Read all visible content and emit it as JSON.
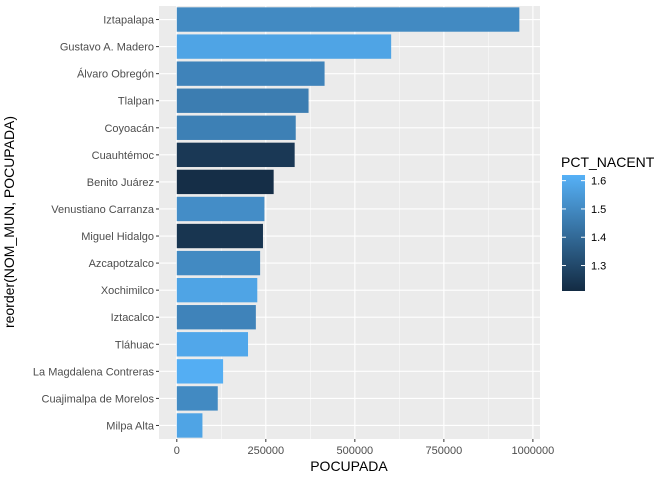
{
  "chart_data": {
    "type": "bar",
    "orientation": "horizontal",
    "xlabel": "POCUPADA",
    "ylabel": "reorder(NOM_MUN, POCUPADA)",
    "xlim": [
      -50000,
      1020000
    ],
    "xticks": [
      0,
      250000,
      500000,
      750000,
      1000000
    ],
    "xtick_labels": [
      "0",
      "250000",
      "500000",
      "750000",
      "1000000"
    ],
    "grid": true,
    "categories": [
      "Iztapalapa",
      "Gustavo A. Madero",
      "Álvaro Obregón",
      "Tlalpan",
      "Coyoacán",
      "Cuauhtémoc",
      "Benito Juárez",
      "Venustiano Carranza",
      "Miguel Hidalgo",
      "Azcapotzalco",
      "Xochimilco",
      "Iztacalco",
      "Tláhuac",
      "La Magdalena Contreras",
      "Cuajimalpa de Morelos",
      "Milpa Alta"
    ],
    "values": [
      962000,
      602000,
      415000,
      370000,
      334000,
      331000,
      272000,
      246000,
      242000,
      234000,
      226000,
      222000,
      200000,
      130000,
      115000,
      72000
    ],
    "color_values": [
      1.5,
      1.58,
      1.48,
      1.46,
      1.47,
      1.25,
      1.22,
      1.51,
      1.24,
      1.5,
      1.58,
      1.48,
      1.59,
      1.61,
      1.5,
      1.58
    ],
    "legend": {
      "title": "PCT_NACENT",
      "placement": "right",
      "ticks": [
        1.3,
        1.4,
        1.5,
        1.6
      ],
      "tick_labels": [
        "1.3",
        "1.4",
        "1.5",
        "1.6"
      ],
      "range": [
        1.21,
        1.62
      ],
      "color_low": "#132B43",
      "color_high": "#56B1F7"
    },
    "panel_background": "#EBEBEB",
    "grid_color": "#FFFFFF"
  }
}
